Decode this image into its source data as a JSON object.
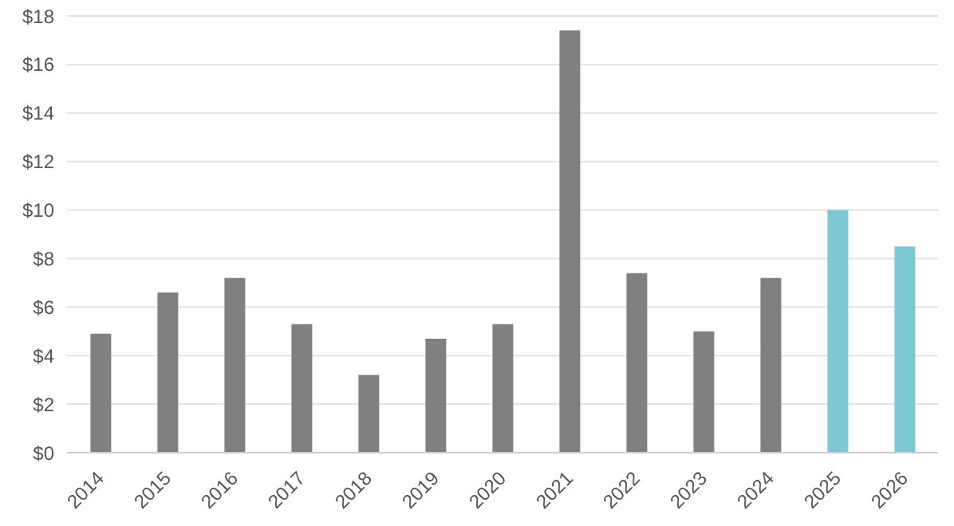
{
  "chart_data": {
    "type": "bar",
    "categories": [
      "2014",
      "2015",
      "2016",
      "2017",
      "2018",
      "2019",
      "2020",
      "2021",
      "2022",
      "2023",
      "2024",
      "2025",
      "2026"
    ],
    "values": [
      4.9,
      6.6,
      7.2,
      5.3,
      3.2,
      4.7,
      5.3,
      17.4,
      7.4,
      5.0,
      7.2,
      10.0,
      8.5
    ],
    "colors": [
      "#808080",
      "#808080",
      "#808080",
      "#808080",
      "#808080",
      "#808080",
      "#808080",
      "#808080",
      "#808080",
      "#808080",
      "#808080",
      "#7ec8d3",
      "#7ec8d3"
    ],
    "ylim": [
      0,
      18
    ],
    "yticks": [
      {
        "value": 0,
        "label": "$0"
      },
      {
        "value": 2,
        "label": "$2"
      },
      {
        "value": 4,
        "label": "$4"
      },
      {
        "value": 6,
        "label": "$6"
      },
      {
        "value": 8,
        "label": "$8"
      },
      {
        "value": 10,
        "label": "$10"
      },
      {
        "value": 12,
        "label": "$12"
      },
      {
        "value": 14,
        "label": "$14"
      },
      {
        "value": 16,
        "label": "$16"
      },
      {
        "value": 18,
        "label": "$18"
      }
    ],
    "grid": "y"
  }
}
